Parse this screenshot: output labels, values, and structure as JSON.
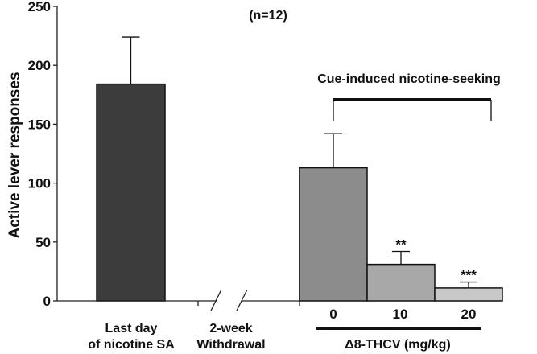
{
  "chart_data": {
    "type": "bar",
    "ylabel": "Active lever responses",
    "ylim": [
      0,
      250
    ],
    "yticks": [
      0,
      50,
      100,
      150,
      200,
      250
    ],
    "annotation": "(n=12)",
    "bars": [
      {
        "id": "last-day",
        "value": 184,
        "error": 40,
        "color": "#3c3c3c",
        "significance": ""
      },
      {
        "id": "dose-0",
        "value": 113,
        "error": 29,
        "color": "#8c8c8c",
        "significance": ""
      },
      {
        "id": "dose-10",
        "value": 31,
        "error": 11,
        "color": "#a8a8a8",
        "significance": "**"
      },
      {
        "id": "dose-20",
        "value": 11,
        "error": 5,
        "color": "#c8c8c8",
        "significance": "***"
      }
    ],
    "group_labels": {
      "last_day_line1": "Last day",
      "last_day_line2": "of nicotine SA",
      "withdrawal_line1": "2-week",
      "withdrawal_line2": "Withdrawal",
      "dose_0": "0",
      "dose_10": "10",
      "dose_20": "20",
      "treatment": "Δ8-THCV (mg/kg)"
    },
    "bracket_label": "Cue-induced nicotine-seeking"
  }
}
